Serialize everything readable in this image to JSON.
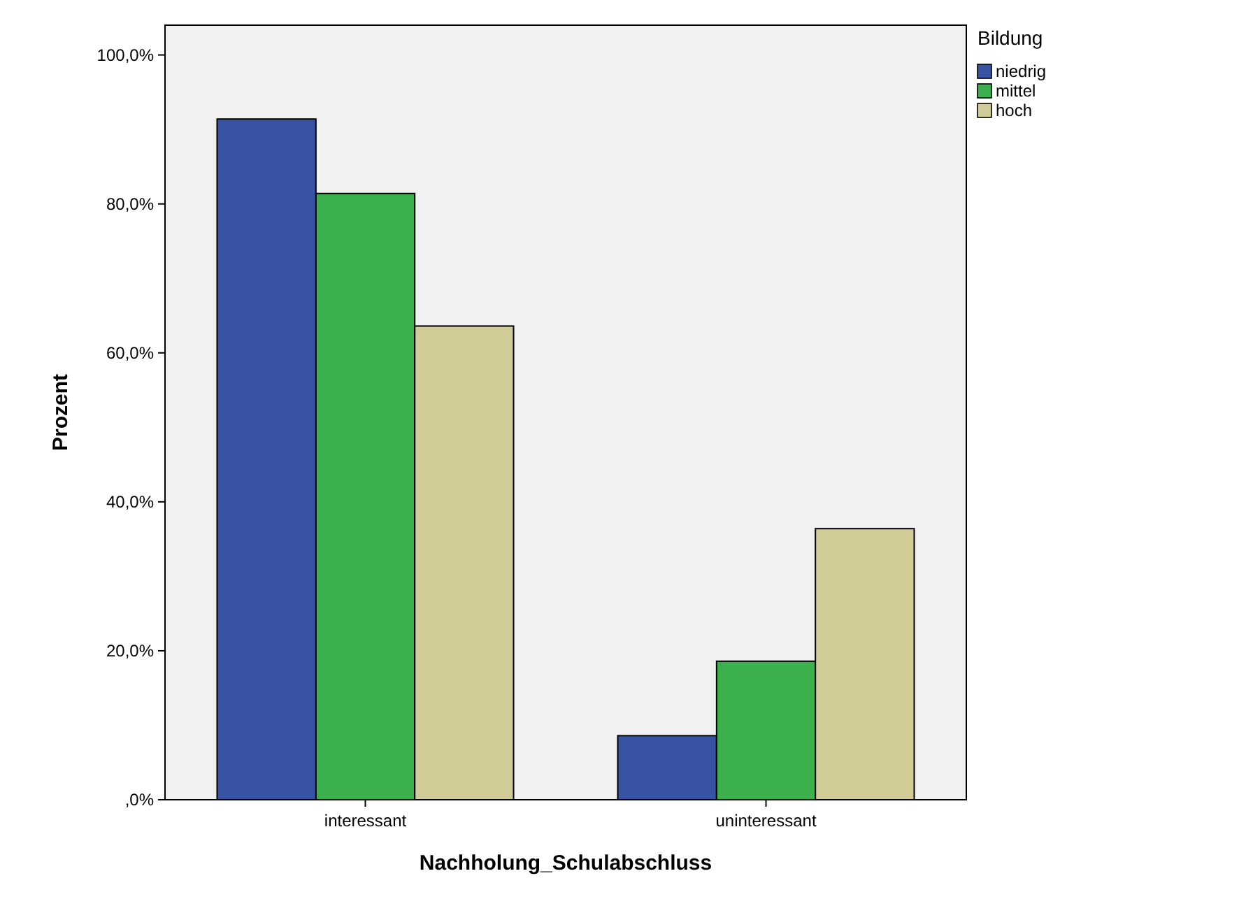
{
  "chart_data": {
    "type": "bar",
    "xlabel": "Nachholung_Schulabschluss",
    "ylabel": "Prozent",
    "legend_title": "Bildung",
    "legend": "top right",
    "grid": false,
    "categories": [
      "interessant",
      "uninteressant"
    ],
    "series": [
      {
        "name": "niedrig",
        "color": "#3953a4",
        "values": [
          91.4,
          8.6
        ]
      },
      {
        "name": "mittel",
        "color": "#3cb04c",
        "values": [
          81.4,
          18.6
        ]
      },
      {
        "name": "hoch",
        "color": "#d1cb97",
        "values": [
          63.6,
          36.4
        ]
      }
    ],
    "ylim": [
      0,
      104
    ],
    "yticks": [
      {
        "value": 0,
        "label": ",0%"
      },
      {
        "value": 20,
        "label": "20,0%"
      },
      {
        "value": 40,
        "label": "40,0%"
      },
      {
        "value": 60,
        "label": "60,0%"
      },
      {
        "value": 80,
        "label": "80,0%"
      },
      {
        "value": 100,
        "label": "100,0%"
      }
    ]
  }
}
